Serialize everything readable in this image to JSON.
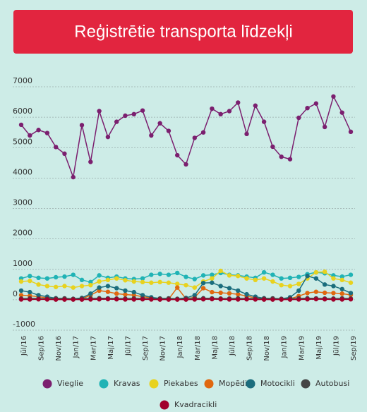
{
  "chart_data": {
    "type": "line",
    "title": "Reģistrētie transporta līdzekļi",
    "categories": [
      "Jūl/16",
      null,
      "Sep/16",
      null,
      "Nov/16",
      null,
      "Jan/17",
      null,
      "Mar/17",
      null,
      "Maj/17",
      null,
      "Jūl/17",
      null,
      "Sep/17",
      null,
      "Nov/17",
      null,
      "Jan/18",
      null,
      "Mar/18",
      null,
      "Maj/18",
      null,
      "Jūl/18",
      null,
      "Sep/18",
      null,
      "Nov/18",
      null,
      "Jan/19",
      null,
      "Mar/19",
      null,
      "Maj/19",
      null,
      "Jūl/19",
      null,
      "Sep/19"
    ],
    "ylim": [
      -1000,
      7000
    ],
    "yticks": [
      -1000,
      0,
      1000,
      2000,
      3000,
      4000,
      5000,
      6000,
      7000
    ],
    "grid": true,
    "series": [
      {
        "name": "Vieglie",
        "color": "#7b1f6f",
        "values": [
          5750,
          5400,
          5580,
          5480,
          5020,
          4800,
          4030,
          5740,
          4530,
          6200,
          5350,
          5850,
          6050,
          6100,
          6220,
          5400,
          5800,
          5550,
          4750,
          4450,
          5320,
          5500,
          6280,
          6100,
          6200,
          6480,
          5450,
          6380,
          5850,
          5030,
          4700,
          4620,
          5980,
          6300,
          6450,
          5680,
          6680,
          6150,
          5520
        ]
      },
      {
        "name": "Kravas",
        "color": "#20b3b5",
        "values": [
          700,
          780,
          720,
          700,
          740,
          760,
          820,
          650,
          580,
          800,
          720,
          760,
          700,
          680,
          700,
          820,
          850,
          820,
          880,
          750,
          680,
          800,
          820,
          880,
          820,
          800,
          760,
          720,
          900,
          820,
          700,
          720,
          750,
          840,
          900,
          870,
          800,
          760,
          820
        ]
      },
      {
        "name": "Piekabes",
        "color": "#e8d21e",
        "values": [
          600,
          620,
          500,
          450,
          420,
          450,
          400,
          450,
          480,
          600,
          650,
          700,
          640,
          600,
          580,
          560,
          580,
          560,
          520,
          480,
          400,
          600,
          700,
          950,
          800,
          780,
          700,
          650,
          700,
          600,
          480,
          450,
          520,
          700,
          900,
          920,
          700,
          650,
          560
        ]
      },
      {
        "name": "Mopēdi",
        "color": "#e0680f",
        "values": [
          150,
          130,
          100,
          60,
          30,
          20,
          20,
          30,
          150,
          300,
          260,
          200,
          170,
          150,
          100,
          60,
          20,
          20,
          400,
          30,
          80,
          380,
          250,
          230,
          210,
          180,
          120,
          60,
          20,
          20,
          20,
          30,
          120,
          220,
          260,
          230,
          220,
          200,
          160
        ]
      },
      {
        "name": "Motocikli",
        "color": "#1b6d7d",
        "values": [
          300,
          250,
          150,
          100,
          50,
          30,
          30,
          60,
          200,
          400,
          450,
          380,
          300,
          250,
          150,
          80,
          40,
          30,
          30,
          60,
          150,
          550,
          560,
          450,
          380,
          300,
          180,
          100,
          50,
          30,
          30,
          80,
          300,
          780,
          700,
          500,
          450,
          350,
          220
        ]
      },
      {
        "name": "Autobusi",
        "color": "#454545",
        "values": [
          40,
          45,
          40,
          35,
          40,
          45,
          30,
          40,
          45,
          50,
          45,
          40,
          40,
          45,
          40,
          35,
          40,
          45,
          30,
          40,
          45,
          50,
          45,
          40,
          40,
          45,
          40,
          35,
          40,
          45,
          30,
          40,
          45,
          50,
          45,
          40,
          40,
          45,
          40
        ]
      },
      {
        "name": "Kvadracikli",
        "color": "#a1002b",
        "values": [
          10,
          10,
          15,
          10,
          5,
          5,
          5,
          5,
          10,
          15,
          20,
          15,
          10,
          10,
          15,
          10,
          5,
          5,
          5,
          5,
          10,
          15,
          20,
          15,
          10,
          10,
          15,
          10,
          5,
          5,
          5,
          5,
          10,
          15,
          20,
          15,
          10,
          10,
          15
        ]
      }
    ]
  }
}
